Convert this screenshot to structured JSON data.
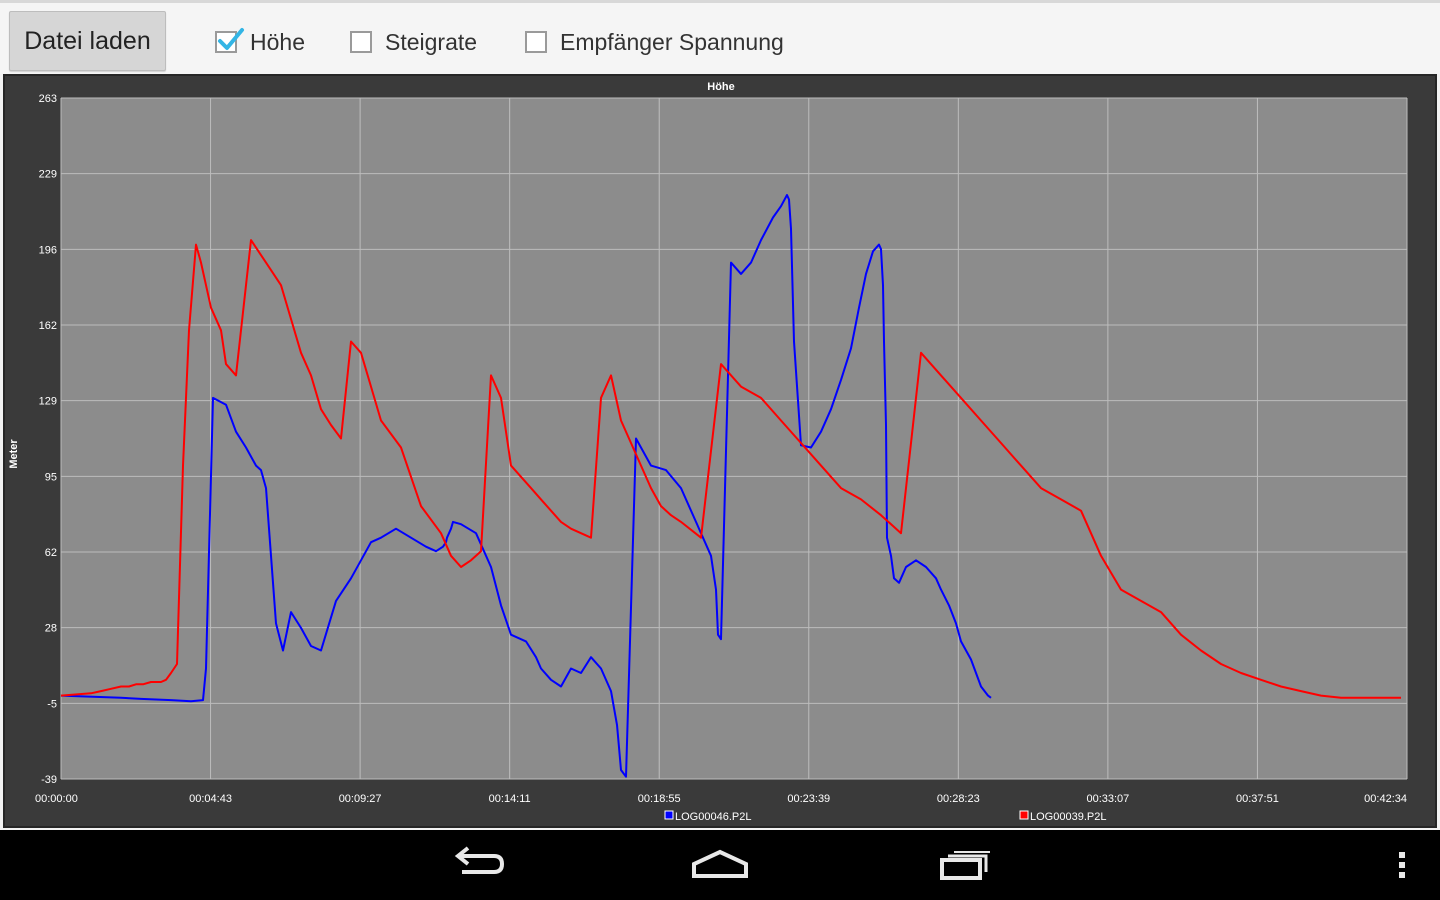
{
  "toolbar": {
    "load_button": "Datei laden",
    "checkboxes": [
      {
        "label": "Höhe",
        "checked": true
      },
      {
        "label": "Steigrate",
        "checked": false
      },
      {
        "label": "Empfänger Spannung",
        "checked": false
      }
    ]
  },
  "colors": {
    "accent": "#33b5e5",
    "plot_bg": "#8c8c8c",
    "frame_bg": "#3a3a3a",
    "series_blue": "#0000ff",
    "series_red": "#ff0000"
  },
  "chart_data": {
    "type": "line",
    "title": "Höhe",
    "ylabel": "Meter",
    "xlabel": "",
    "ylim": [
      -39,
      263
    ],
    "y_ticks": [
      "263",
      "229",
      "196",
      "162",
      "129",
      "95",
      "62",
      "28",
      "-5",
      "-39"
    ],
    "x_ticks": [
      "00:00:00",
      "00:04:43",
      "00:09:27",
      "00:14:11",
      "00:18:55",
      "00:23:39",
      "00:28:23",
      "00:33:07",
      "00:37:51",
      "00:42:34"
    ],
    "grid": true,
    "legend_position": "bottom",
    "series": [
      {
        "name": "LOG00046.P2L",
        "color": "#0000ff",
        "x": [
          0,
          60,
          80,
          110,
          130,
          142,
          145,
          152,
          165,
          175,
          185,
          195,
          200,
          205,
          215,
          222,
          230,
          240,
          250,
          260,
          275,
          290,
          300,
          310,
          320,
          335,
          350,
          365,
          375,
          382,
          385,
          386,
          388,
          390,
          392,
          400,
          415,
          430,
          440,
          450,
          465,
          475,
          480,
          490,
          500,
          510,
          520,
          530,
          540,
          550,
          556,
          558,
          560,
          565,
          575,
          590,
          605,
          620,
          635,
          650,
          655,
          656,
          657,
          660,
          670,
          680,
          690,
          700,
          712,
          720,
          726,
          728,
          730,
          733,
          740,
          750,
          760,
          770,
          780,
          790,
          798,
          805,
          812,
          818,
          820,
          822,
          823,
          825,
          826,
          830,
          833,
          838,
          845,
          855,
          865,
          875,
          880,
          888,
          895,
          900,
          910,
          920,
          927,
          930
        ],
        "y": [
          -2,
          -3,
          -3.5,
          -4,
          -4.5,
          -4,
          10,
          130,
          127,
          115,
          108,
          100,
          98,
          90,
          30,
          18,
          35,
          28,
          20,
          18,
          40,
          50,
          58,
          66,
          68,
          72,
          68,
          64,
          62,
          64,
          66,
          68,
          70,
          72,
          75,
          74,
          70,
          55,
          38,
          25,
          22,
          15,
          10,
          5,
          2,
          10,
          8,
          15,
          10,
          0,
          -15,
          -25,
          -35,
          -38,
          112,
          100,
          98,
          90,
          75,
          60,
          45,
          35,
          25,
          23,
          190,
          185,
          190,
          200,
          210,
          215,
          220,
          218,
          205,
          155,
          109,
          108,
          115,
          125,
          138,
          152,
          170,
          185,
          195,
          198,
          196,
          180,
          155,
          118,
          68,
          60,
          50,
          48,
          55,
          58,
          55,
          50,
          45,
          38,
          30,
          22,
          14,
          2,
          -2,
          -3
        ]
      },
      {
        "name": "LOG00039.P2L",
        "color": "#ff0000",
        "x": [
          0,
          30,
          40,
          50,
          60,
          68,
          75,
          82,
          90,
          100,
          105,
          110,
          116,
          122,
          128,
          135,
          140,
          145,
          150,
          160,
          165,
          175,
          190,
          205,
          220,
          230,
          240,
          250,
          260,
          270,
          280,
          290,
          300,
          310,
          320,
          340,
          350,
          360,
          380,
          390,
          400,
          410,
          420,
          430,
          440,
          450,
          460,
          470,
          480,
          490,
          500,
          510,
          520,
          530,
          540,
          550,
          560,
          570,
          580,
          590,
          600,
          610,
          620,
          640,
          660,
          680,
          700,
          720,
          740,
          760,
          780,
          800,
          820,
          840,
          860,
          880,
          900,
          920,
          940,
          960,
          980,
          1000,
          1020,
          1040,
          1060,
          1080,
          1100,
          1120,
          1140,
          1160,
          1180,
          1200,
          1220,
          1240,
          1260,
          1280,
          1300,
          1320,
          1340
        ],
        "y": [
          -2,
          -1,
          0,
          1,
          2,
          2,
          3,
          3,
          4,
          4,
          5,
          8,
          12,
          100,
          160,
          198,
          190,
          180,
          170,
          160,
          145,
          140,
          200,
          190,
          180,
          165,
          150,
          140,
          125,
          118,
          112,
          155,
          150,
          135,
          120,
          108,
          95,
          82,
          70,
          60,
          55,
          58,
          62,
          140,
          130,
          100,
          95,
          90,
          85,
          80,
          75,
          72,
          70,
          68,
          130,
          140,
          120,
          110,
          100,
          90,
          82,
          78,
          75,
          68,
          145,
          135,
          130,
          120,
          110,
          100,
          90,
          85,
          78,
          70,
          150,
          140,
          130,
          120,
          110,
          100,
          90,
          85,
          80,
          60,
          45,
          40,
          35,
          25,
          18,
          12,
          8,
          5,
          2,
          0,
          -2,
          -3,
          -3,
          -3,
          -3
        ]
      }
    ]
  },
  "navbar": {
    "back": "back-icon",
    "home": "home-icon",
    "recents": "recents-icon",
    "menu": "overflow-menu-icon"
  }
}
